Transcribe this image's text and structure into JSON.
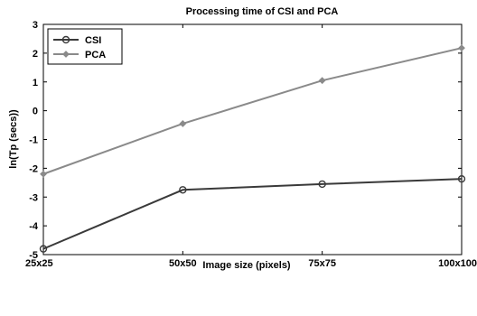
{
  "chart_data": {
    "type": "line",
    "title": "Processing time of CSI and PCA",
    "xlabel": "Image size (pixels)",
    "ylabel": "ln(Tp (secs))",
    "categories": [
      "25x25",
      "50x50",
      "75x75",
      "100x100"
    ],
    "ylim": [
      -5,
      3
    ],
    "yticks": [
      "3",
      "2",
      "1",
      "0",
      "-1",
      "-2",
      "-3",
      "-4",
      "-5"
    ],
    "grid": false,
    "legend_position": "top-left",
    "series": [
      {
        "name": "CSI",
        "marker": "circle",
        "color": "#3a3a3a",
        "values": [
          -4.8,
          -2.75,
          -2.55,
          -2.37
        ]
      },
      {
        "name": "PCA",
        "marker": "diamond",
        "color": "#8a8a8a",
        "values": [
          -2.2,
          -0.45,
          1.05,
          2.18
        ]
      }
    ]
  }
}
